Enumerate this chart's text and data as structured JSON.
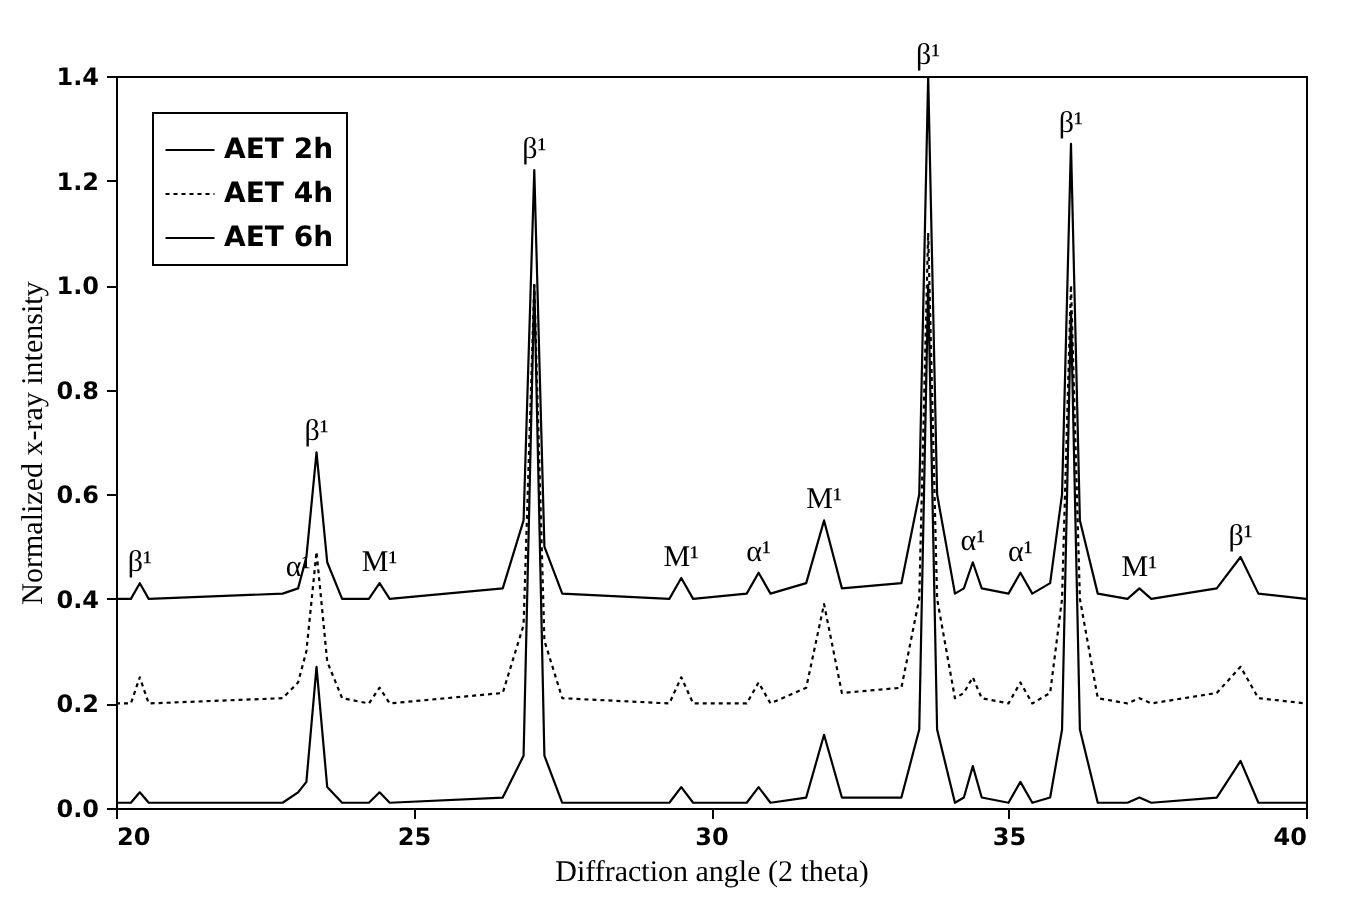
{
  "chart_data": {
    "type": "line",
    "xlabel": "Diffraction angle (2 theta)",
    "ylabel": "Normalized x-ray intensity",
    "x": [
      20,
      20.25,
      20.4,
      20.55,
      22.8,
      23.06,
      23.2,
      23.37,
      23.55,
      23.8,
      24.25,
      24.43,
      24.6,
      26.5,
      26.85,
      27.03,
      27.2,
      27.5,
      29.3,
      29.5,
      29.7,
      30.6,
      30.8,
      31.0,
      31.6,
      31.9,
      32.2,
      33.2,
      33.5,
      33.65,
      33.8,
      34.1,
      34.25,
      34.4,
      34.55,
      35.0,
      35.2,
      35.4,
      35.7,
      35.9,
      36.05,
      36.2,
      36.5,
      37.0,
      37.2,
      37.4,
      38.5,
      38.9,
      39.2,
      40
    ],
    "series": [
      {
        "name": "AET 2h",
        "color": "#000000",
        "line_style": "solid",
        "values": [
          0.01,
          0.01,
          0.03,
          0.01,
          0.01,
          0.03,
          0.05,
          0.27,
          0.04,
          0.01,
          0.01,
          0.03,
          0.01,
          0.02,
          0.1,
          1.0,
          0.1,
          0.01,
          0.01,
          0.04,
          0.01,
          0.01,
          0.04,
          0.01,
          0.02,
          0.14,
          0.02,
          0.02,
          0.15,
          1.0,
          0.15,
          0.01,
          0.02,
          0.08,
          0.02,
          0.01,
          0.05,
          0.01,
          0.02,
          0.15,
          0.95,
          0.15,
          0.01,
          0.01,
          0.02,
          0.01,
          0.02,
          0.09,
          0.01,
          0.01
        ]
      },
      {
        "name": "AET 4h",
        "color": "#000000",
        "line_style": "dotted",
        "values": [
          0.2,
          0.2,
          0.25,
          0.2,
          0.21,
          0.24,
          0.3,
          0.49,
          0.28,
          0.21,
          0.2,
          0.23,
          0.2,
          0.22,
          0.35,
          1.0,
          0.32,
          0.21,
          0.2,
          0.25,
          0.2,
          0.2,
          0.24,
          0.2,
          0.23,
          0.39,
          0.22,
          0.23,
          0.4,
          1.1,
          0.4,
          0.21,
          0.22,
          0.25,
          0.21,
          0.2,
          0.24,
          0.2,
          0.22,
          0.4,
          1.0,
          0.4,
          0.21,
          0.2,
          0.21,
          0.2,
          0.22,
          0.27,
          0.21,
          0.2
        ]
      },
      {
        "name": "AET 6h",
        "color": "#000000",
        "line_style": "solid",
        "values": [
          0.4,
          0.4,
          0.43,
          0.4,
          0.41,
          0.42,
          0.48,
          0.68,
          0.47,
          0.4,
          0.4,
          0.43,
          0.4,
          0.42,
          0.55,
          1.22,
          0.5,
          0.41,
          0.4,
          0.44,
          0.4,
          0.41,
          0.45,
          0.41,
          0.43,
          0.55,
          0.42,
          0.43,
          0.6,
          1.4,
          0.6,
          0.41,
          0.42,
          0.47,
          0.42,
          0.41,
          0.45,
          0.41,
          0.43,
          0.6,
          1.27,
          0.55,
          0.41,
          0.4,
          0.42,
          0.4,
          0.42,
          0.48,
          0.41,
          0.4
        ]
      }
    ],
    "xlim": [
      20,
      40
    ],
    "xticks": [
      20,
      25,
      30,
      35,
      40
    ],
    "ylim": [
      0,
      1.4
    ],
    "yticks": [
      {
        "value": 0,
        "label": "0.0"
      },
      0.2,
      0.4,
      0.6,
      0.8,
      {
        "value": 1,
        "label": "1.0"
      },
      1.2,
      1.4
    ],
    "grid": false,
    "legend": "top left",
    "marker": "none",
    "annotations": [
      {
        "text": "β¹",
        "x": 20.4,
        "y": 0.43
      },
      {
        "text": "α¹",
        "x": 23.06,
        "y": 0.42
      },
      {
        "text": "β¹",
        "x": 23.37,
        "y": 0.68
      },
      {
        "text": "M¹",
        "x": 24.43,
        "y": 0.43
      },
      {
        "text": "β¹",
        "x": 27.03,
        "y": 1.22
      },
      {
        "text": "M¹",
        "x": 29.5,
        "y": 0.44
      },
      {
        "text": "α¹",
        "x": 30.8,
        "y": 0.45
      },
      {
        "text": "M¹",
        "x": 31.9,
        "y": 0.55
      },
      {
        "text": "β¹",
        "x": 33.65,
        "y": 1.4
      },
      {
        "text": "α¹",
        "x": 34.4,
        "y": 0.47
      },
      {
        "text": "α¹",
        "x": 35.2,
        "y": 0.45
      },
      {
        "text": "β¹",
        "x": 36.05,
        "y": 1.27
      },
      {
        "text": "M¹",
        "x": 37.2,
        "y": 0.42
      },
      {
        "text": "β¹",
        "x": 38.9,
        "y": 0.48
      }
    ]
  }
}
